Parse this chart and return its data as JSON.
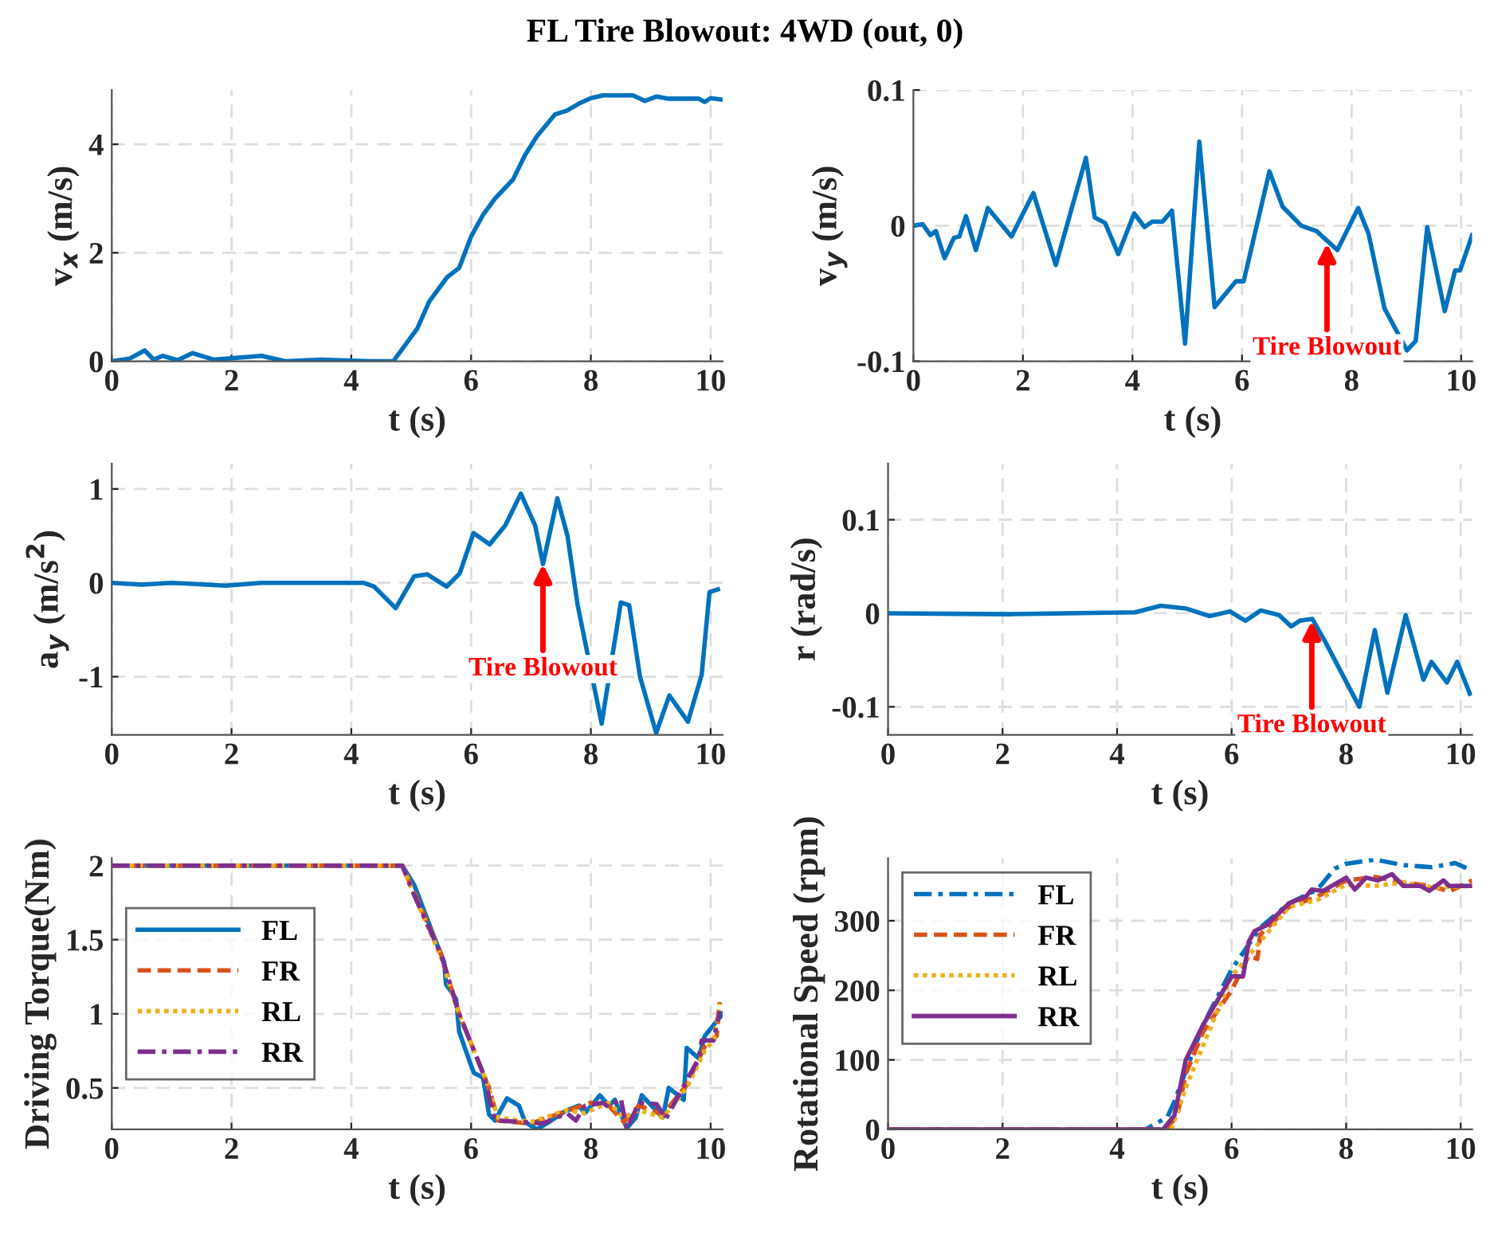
{
  "chart_data": [
    {
      "type": "line",
      "title": "FL Tire Blowout: 4WD (out, 0)",
      "xlabel": "t (s)",
      "ylabel": "v$_{x}$ (m/s)",
      "xlim": [
        0,
        10.2
      ],
      "xticks": [
        0,
        2,
        4,
        6,
        8,
        10
      ],
      "ylim": [
        0,
        5
      ],
      "yticks": [
        0,
        2,
        4
      ],
      "grid": true,
      "legend": false,
      "series": [
        {
          "color": "#0072bd",
          "line_style": "solid",
          "x": [
            0,
            0.3,
            0.55,
            0.7,
            0.85,
            1.1,
            1.35,
            1.7,
            2.5,
            2.9,
            3.5,
            4.3,
            4.7,
            5.1,
            5.3,
            5.6,
            5.8,
            6.0,
            6.2,
            6.4,
            6.7,
            6.9,
            7.1,
            7.4,
            7.6,
            7.8,
            8.0,
            8.2,
            8.7,
            8.9,
            9.1,
            9.3,
            9.8,
            9.9,
            10.0,
            10.2
          ],
          "values": [
            0,
            0.05,
            0.2,
            0.03,
            0.1,
            0.02,
            0.15,
            0.03,
            0.1,
            0.0,
            0.03,
            0.0,
            0.0,
            0.6,
            1.1,
            1.55,
            1.72,
            2.3,
            2.7,
            3.0,
            3.35,
            3.8,
            4.15,
            4.55,
            4.62,
            4.75,
            4.85,
            4.9,
            4.9,
            4.8,
            4.88,
            4.84,
            4.84,
            4.78,
            4.85,
            4.82
          ]
        }
      ]
    },
    {
      "type": "line",
      "xlabel": "t (s)",
      "ylabel": "v$_{y}$ (m/s)",
      "xlim": [
        0,
        10.2
      ],
      "xticks": [
        0,
        2,
        4,
        6,
        8,
        10
      ],
      "ylim": [
        -0.1,
        0.1
      ],
      "yticks": [
        -0.1,
        0,
        0.1
      ],
      "grid": true,
      "legend": false,
      "annotations": [
        {
          "text": "Tire Blowout",
          "x": 7.55,
          "y": -0.013
        }
      ],
      "series": [
        {
          "color": "#0072bd",
          "line_style": "solid",
          "x": [
            0,
            0.17,
            0.31,
            0.41,
            0.57,
            0.74,
            0.84,
            0.96,
            1.14,
            1.36,
            1.79,
            2.19,
            2.6,
            3.15,
            3.31,
            3.5,
            3.74,
            4.03,
            4.22,
            4.36,
            4.55,
            4.72,
            4.96,
            5.22,
            5.5,
            5.89,
            6.03,
            6.5,
            6.74,
            7.08,
            7.36,
            7.74,
            8.12,
            8.31,
            8.6,
            9.01,
            9.17,
            9.38,
            9.7,
            9.89,
            9.98,
            10.2
          ],
          "values": [
            0,
            0.001,
            -0.007,
            -0.004,
            -0.024,
            -0.009,
            -0.008,
            0.007,
            -0.018,
            0.013,
            -0.008,
            0.024,
            -0.029,
            0.05,
            0.006,
            0.002,
            -0.021,
            0.009,
            -0.001,
            0.003,
            0.003,
            0.011,
            -0.087,
            0.062,
            -0.06,
            -0.041,
            -0.041,
            0.04,
            0.014,
            0,
            -0.004,
            -0.018,
            0.013,
            -0.006,
            -0.061,
            -0.092,
            -0.085,
            -0.001,
            -0.063,
            -0.033,
            -0.033,
            -0.007
          ]
        }
      ]
    },
    {
      "type": "line",
      "xlabel": "t (s)",
      "ylabel": "a$_{y}$ (m/s$^{2}$)",
      "xlim": [
        0,
        10.2
      ],
      "xticks": [
        0,
        2,
        4,
        6,
        8,
        10
      ],
      "ylim": [
        -1.62,
        1.27
      ],
      "yticks": [
        -1,
        0,
        1
      ],
      "grid": true,
      "legend": false,
      "annotations": [
        {
          "text": "Tire Blowout",
          "x": 7.2,
          "y": 0.2
        }
      ],
      "series": [
        {
          "color": "#0072bd",
          "line_style": "solid",
          "x": [
            0,
            0.5,
            1.0,
            1.9,
            2.5,
            3.5,
            4.2,
            4.38,
            4.74,
            5.05,
            5.27,
            5.59,
            5.81,
            6.04,
            6.31,
            6.57,
            6.83,
            7.07,
            7.2,
            7.44,
            7.61,
            7.78,
            8.18,
            8.5,
            8.64,
            8.82,
            9.09,
            9.31,
            9.62,
            9.85,
            9.98,
            10.12
          ],
          "values": [
            0,
            -0.02,
            0,
            -0.03,
            0,
            0,
            0,
            -0.04,
            -0.27,
            0.07,
            0.09,
            -0.04,
            0.1,
            0.53,
            0.41,
            0.61,
            0.95,
            0.61,
            0.2,
            0.9,
            0.5,
            -0.24,
            -1.5,
            -0.21,
            -0.24,
            -1.0,
            -1.6,
            -1.2,
            -1.48,
            -0.98,
            -0.1,
            -0.07
          ]
        }
      ]
    },
    {
      "type": "line",
      "xlabel": "t (s)",
      "ylabel": "r (rad/s)",
      "xlim": [
        0,
        10.2
      ],
      "xticks": [
        0,
        2,
        4,
        6,
        8,
        10
      ],
      "ylim": [
        -0.13,
        0.16
      ],
      "yticks": [
        -0.1,
        0,
        0.1
      ],
      "grid": true,
      "legend": false,
      "annotations": [
        {
          "text": "Tire Blowout",
          "x": 7.4,
          "y": -0.008
        }
      ],
      "series": [
        {
          "color": "#0072bd",
          "line_style": "solid",
          "x": [
            0,
            2.14,
            4.31,
            4.76,
            5.21,
            5.61,
            5.97,
            6.24,
            6.51,
            6.83,
            7.04,
            7.19,
            7.41,
            7.64,
            8.23,
            8.5,
            8.72,
            9.04,
            9.35,
            9.49,
            9.76,
            9.94,
            10.16
          ],
          "values": [
            0,
            -0.001,
            0.001,
            0.008,
            0.005,
            -0.003,
            0.002,
            -0.008,
            0.003,
            -0.002,
            -0.014,
            -0.008,
            -0.006,
            -0.031,
            -0.1,
            -0.018,
            -0.085,
            -0.002,
            -0.071,
            -0.052,
            -0.074,
            -0.052,
            -0.086
          ]
        }
      ]
    },
    {
      "type": "line",
      "xlabel": "t (s)",
      "ylabel": "Driving Torque(Nm)",
      "xlim": [
        0,
        10.2
      ],
      "xticks": [
        0,
        2,
        4,
        6,
        8,
        10
      ],
      "ylim": [
        0.22,
        2.05
      ],
      "yticks": [
        0.5,
        1,
        1.5,
        2
      ],
      "grid": true,
      "legend": "left",
      "series": [
        {
          "name": "FL",
          "color": "#0072bd",
          "line_style": "solid",
          "x": [
            0,
            4.85,
            5.05,
            5.4,
            5.55,
            5.58,
            5.75,
            5.8,
            6.0,
            6.05,
            6.2,
            6.3,
            6.4,
            6.6,
            6.8,
            6.9,
            7.1,
            7.3,
            7.6,
            7.8,
            7.9,
            8.15,
            8.3,
            8.4,
            8.6,
            8.75,
            8.85,
            9.2,
            9.3,
            9.55,
            9.6,
            9.8,
            9.9,
            10.2
          ],
          "values": [
            2,
            2,
            1.87,
            1.5,
            1.35,
            1.2,
            1.1,
            0.88,
            0.65,
            0.6,
            0.57,
            0.32,
            0.28,
            0.43,
            0.38,
            0.27,
            0.22,
            0.27,
            0.35,
            0.38,
            0.33,
            0.45,
            0.38,
            0.42,
            0.23,
            0.3,
            0.45,
            0.3,
            0.5,
            0.42,
            0.77,
            0.7,
            0.85,
            1.0
          ]
        },
        {
          "name": "FR",
          "color": "#d95319",
          "line_style": "dashed",
          "x": [
            0,
            4.85,
            5.05,
            5.5,
            5.8,
            6.3,
            6.45,
            7.0,
            7.5,
            8.0,
            8.3,
            8.55,
            8.8,
            9.2,
            9.6,
            9.9,
            10.1,
            10.15
          ],
          "values": [
            2,
            2,
            1.82,
            1.4,
            1.0,
            0.5,
            0.28,
            0.26,
            0.33,
            0.4,
            0.38,
            0.27,
            0.38,
            0.32,
            0.52,
            0.78,
            0.85,
            1.08
          ]
        },
        {
          "name": "RL",
          "color": "#edb120",
          "line_style": "dotted",
          "x": [
            0,
            4.85,
            5.05,
            5.5,
            5.75,
            6.25,
            6.45,
            7.0,
            7.6,
            7.9,
            8.3,
            8.55,
            8.8,
            9.2,
            9.6,
            9.9,
            10.05,
            10.15
          ],
          "values": [
            2,
            2,
            1.8,
            1.38,
            1.05,
            0.55,
            0.3,
            0.27,
            0.35,
            0.33,
            0.4,
            0.3,
            0.35,
            0.3,
            0.5,
            0.75,
            0.82,
            1.07
          ]
        },
        {
          "name": "RR",
          "color": "#7e2f8e",
          "line_style": "dashdot",
          "x": [
            0,
            4.85,
            5.05,
            5.5,
            5.8,
            6.2,
            6.4,
            6.9,
            7.2,
            7.6,
            7.75,
            7.9,
            8.2,
            8.3,
            8.5,
            8.6,
            8.8,
            9.1,
            9.25,
            9.6,
            9.8,
            9.85,
            10.05,
            10.15
          ],
          "values": [
            2,
            2,
            1.8,
            1.4,
            1.0,
            0.6,
            0.28,
            0.27,
            0.26,
            0.33,
            0.28,
            0.38,
            0.4,
            0.37,
            0.43,
            0.22,
            0.4,
            0.39,
            0.29,
            0.55,
            0.7,
            0.82,
            0.82,
            1.02
          ]
        }
      ]
    },
    {
      "type": "line",
      "xlabel": "t (s)",
      "ylabel": "Rotational Speed (rpm)",
      "xlim": [
        0,
        10.2
      ],
      "xticks": [
        0,
        2,
        4,
        6,
        8,
        10
      ],
      "ylim": [
        0,
        390
      ],
      "yticks": [
        0,
        100,
        200,
        300
      ],
      "grid": true,
      "legend": "top left",
      "series": [
        {
          "name": "FL",
          "color": "#0072bd",
          "line_style": "dashdot",
          "x": [
            0,
            4.5,
            4.88,
            5.0,
            5.5,
            6.0,
            6.5,
            7.0,
            7.5,
            7.8,
            8.0,
            8.5,
            9.0,
            9.5,
            9.9,
            10.2
          ],
          "values": [
            0,
            0,
            18,
            40,
            150,
            230,
            290,
            325,
            345,
            375,
            382,
            388,
            380,
            377,
            383,
            372
          ]
        },
        {
          "name": "FR",
          "color": "#d95319",
          "line_style": "dashed",
          "x": [
            0,
            4.85,
            5.05,
            5.2,
            5.5,
            6.0,
            6.3,
            6.45,
            6.5,
            7.0,
            7.5,
            8.0,
            8.5,
            9.0,
            9.5,
            9.8,
            10.2
          ],
          "values": [
            0,
            0,
            20,
            80,
            140,
            200,
            250,
            245,
            280,
            320,
            335,
            358,
            363,
            355,
            350,
            342,
            358
          ]
        },
        {
          "name": "RL",
          "color": "#edb120",
          "line_style": "dotted",
          "x": [
            0,
            4.95,
            5.2,
            6.0,
            6.5,
            7.0,
            7.5,
            8.0,
            8.5,
            9.0,
            9.5,
            10.2
          ],
          "values": [
            0,
            0,
            60,
            220,
            270,
            320,
            330,
            352,
            350,
            355,
            348,
            350
          ]
        },
        {
          "name": "RR",
          "color": "#7e2f8e",
          "line_style": "solid",
          "x": [
            0,
            4.8,
            5.0,
            5.05,
            5.2,
            5.5,
            6.0,
            6.2,
            6.3,
            6.4,
            6.6,
            7.0,
            7.3,
            7.4,
            7.6,
            8.0,
            8.15,
            8.35,
            8.55,
            8.8,
            9.0,
            9.3,
            9.45,
            9.7,
            9.8,
            10.2
          ],
          "values": [
            0,
            0,
            20,
            40,
            100,
            150,
            220,
            220,
            270,
            285,
            293,
            325,
            335,
            345,
            343,
            362,
            345,
            362,
            358,
            367,
            350,
            350,
            343,
            358,
            350,
            350
          ]
        }
      ]
    }
  ]
}
